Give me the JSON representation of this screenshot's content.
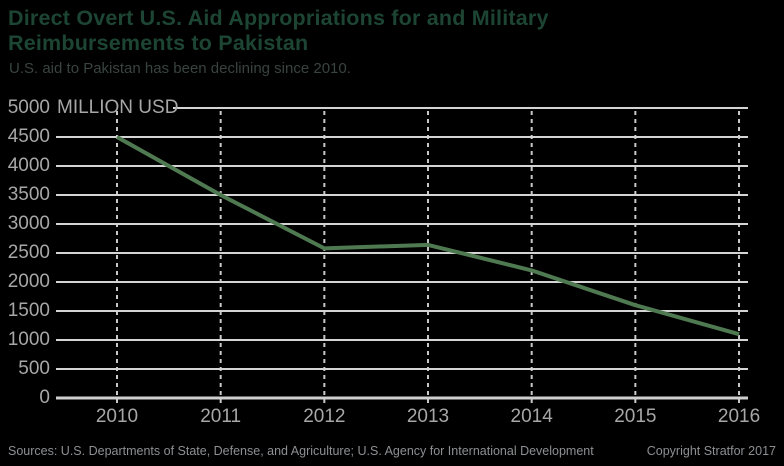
{
  "header": {
    "title_line1": "Direct Overt U.S. Aid Appropriations for and Military",
    "title_line2": "Reimbursements to Pakistan",
    "subtitle": "U.S. aid to Pakistan has been declining since 2010."
  },
  "chart_data": {
    "type": "line",
    "title": "Direct Overt U.S. Aid Appropriations for and Military Reimbursements to Pakistan",
    "subtitle": "U.S. aid to Pakistan has been declining since 2010.",
    "unit_label": "MILLION USD",
    "x": [
      2010,
      2011,
      2012,
      2013,
      2014,
      2015,
      2016
    ],
    "series": [
      {
        "name": "Direct overt U.S. aid appropriations and military reimbursements to Pakistan",
        "values": [
          4500,
          3500,
          2580,
          2640,
          2200,
          1600,
          1100
        ]
      }
    ],
    "ylim": [
      0,
      5000
    ],
    "yticks": [
      5000,
      4500,
      4000,
      3500,
      3000,
      2500,
      2000,
      1500,
      1000,
      500,
      0
    ],
    "grid": "horizontal-solid, vertical-dashed",
    "legend": "none",
    "line_color": "#4f7a51"
  },
  "colors": {
    "background": "#000000",
    "title_text": "#1d4533",
    "subtitle_text": "#39443f",
    "axis_label": "#a7a7a7",
    "gridline": "#d4d4d4",
    "gridline_dashed": "#c9c9c9",
    "axis_line": "#cfcfcf",
    "line": "#4f7a51",
    "footer_text": "#8d8f92"
  },
  "footer": {
    "sources": "Sources: U.S. Departments of State, Defense, and Agriculture; U.S. Agency for International Development",
    "copyright": "Copyright Stratfor 2017"
  }
}
